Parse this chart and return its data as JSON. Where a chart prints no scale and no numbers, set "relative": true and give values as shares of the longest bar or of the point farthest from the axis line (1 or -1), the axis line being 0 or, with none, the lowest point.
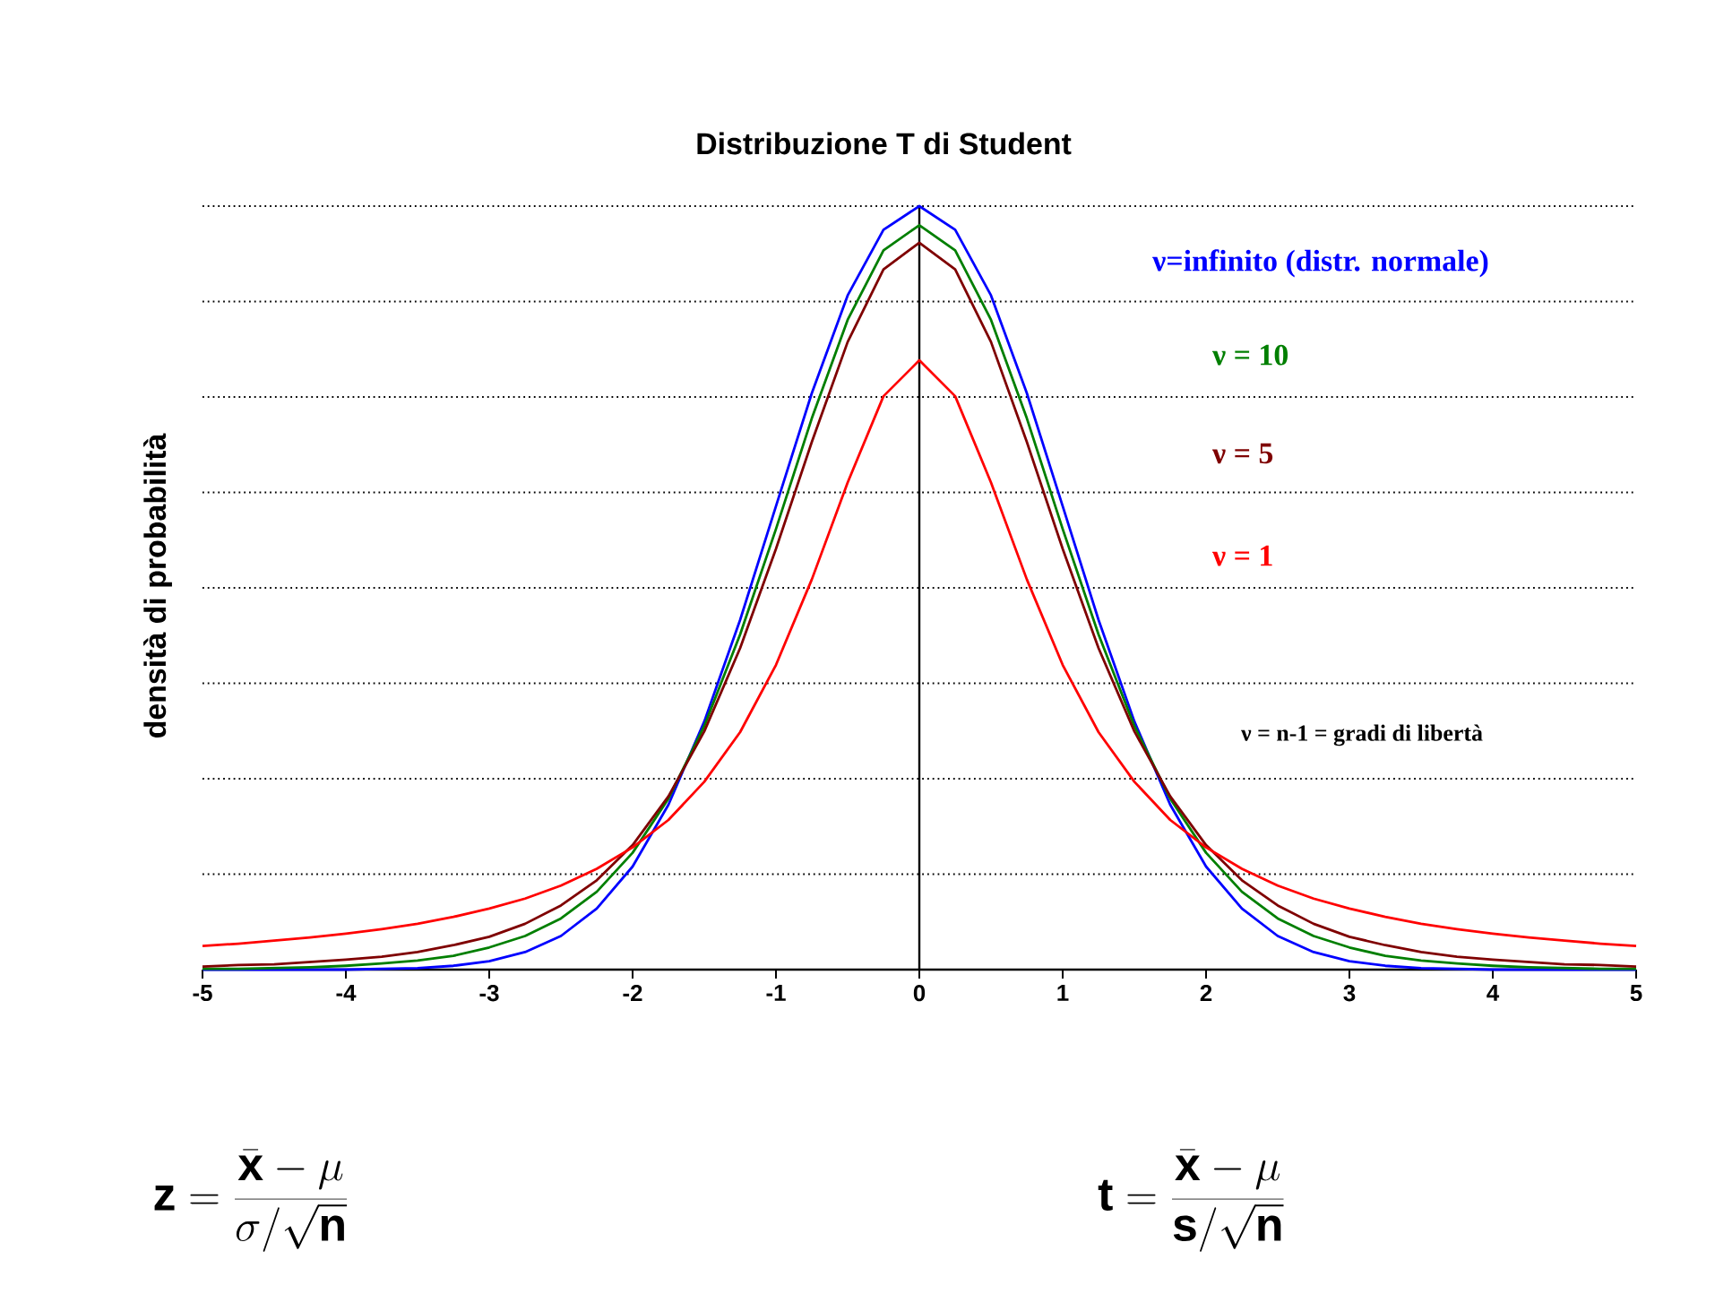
{
  "chart_data": {
    "type": "line",
    "title": "Distribuzione T di Student",
    "ylabel": "densità di probabilità",
    "relative": true,
    "x": [
      -5,
      -4.75,
      -4.5,
      -4.25,
      -4,
      -3.75,
      -3.5,
      -3.25,
      -3,
      -2.75,
      -2.5,
      -2.25,
      -2,
      -1.75,
      -1.5,
      -1.25,
      -1,
      -0.75,
      -0.5,
      -0.25,
      0,
      0.25,
      0.5,
      0.75,
      1,
      1.25,
      1.5,
      1.75,
      2,
      2.25,
      2.5,
      2.75,
      3,
      3.25,
      3.5,
      3.75,
      4,
      4.25,
      4.5,
      4.75,
      5
    ],
    "xlim": [
      -5,
      5
    ],
    "xticks": [
      -5,
      -4,
      -3,
      -2,
      -1,
      0,
      1,
      2,
      3,
      4,
      5
    ],
    "series": [
      {
        "name": "ν=infinito (distr. normale)",
        "color": "#0000ff",
        "values": [
          0.0,
          0.0,
          0.0,
          0.0,
          0.0,
          0.001,
          0.002,
          0.005,
          0.011,
          0.023,
          0.044,
          0.08,
          0.135,
          0.216,
          0.325,
          0.458,
          0.607,
          0.755,
          0.883,
          0.969,
          1.0,
          0.969,
          0.883,
          0.755,
          0.607,
          0.458,
          0.325,
          0.216,
          0.135,
          0.08,
          0.044,
          0.023,
          0.011,
          0.005,
          0.002,
          0.001,
          0.0,
          0.0,
          0.0,
          0.0,
          0.0
        ]
      },
      {
        "name": "ν = 10",
        "color": "#007f00",
        "values": [
          0.001,
          0.001,
          0.002,
          0.003,
          0.005,
          0.008,
          0.012,
          0.018,
          0.029,
          0.044,
          0.067,
          0.102,
          0.153,
          0.224,
          0.319,
          0.439,
          0.577,
          0.722,
          0.851,
          0.942,
          0.975,
          0.942,
          0.851,
          0.722,
          0.577,
          0.439,
          0.319,
          0.224,
          0.153,
          0.102,
          0.067,
          0.044,
          0.029,
          0.018,
          0.012,
          0.008,
          0.005,
          0.003,
          0.002,
          0.001,
          0.001
        ]
      },
      {
        "name": "ν = 5",
        "color": "#7f0000",
        "values": [
          0.004,
          0.006,
          0.007,
          0.01,
          0.013,
          0.017,
          0.023,
          0.032,
          0.043,
          0.06,
          0.084,
          0.117,
          0.163,
          0.227,
          0.312,
          0.421,
          0.551,
          0.691,
          0.822,
          0.917,
          0.952,
          0.917,
          0.822,
          0.691,
          0.551,
          0.421,
          0.312,
          0.227,
          0.163,
          0.117,
          0.084,
          0.06,
          0.043,
          0.032,
          0.023,
          0.017,
          0.013,
          0.01,
          0.007,
          0.006,
          0.004
        ]
      },
      {
        "name": "ν = 1",
        "color": "#ff0000",
        "values": [
          0.031,
          0.034,
          0.038,
          0.042,
          0.047,
          0.053,
          0.06,
          0.069,
          0.08,
          0.093,
          0.11,
          0.132,
          0.16,
          0.196,
          0.246,
          0.311,
          0.399,
          0.511,
          0.638,
          0.751,
          0.798,
          0.751,
          0.638,
          0.511,
          0.399,
          0.311,
          0.246,
          0.196,
          0.16,
          0.132,
          0.11,
          0.093,
          0.08,
          0.069,
          0.06,
          0.053,
          0.047,
          0.042,
          0.038,
          0.034,
          0.031
        ]
      }
    ],
    "ref_lines": [
      {
        "axis": "y",
        "value": 0.125,
        "color": "#000000",
        "line_style": "dotted"
      },
      {
        "axis": "y",
        "value": 0.25,
        "color": "#000000",
        "line_style": "dotted"
      },
      {
        "axis": "y",
        "value": 0.375,
        "color": "#000000",
        "line_style": "dotted"
      },
      {
        "axis": "y",
        "value": 0.5,
        "color": "#000000",
        "line_style": "dotted"
      },
      {
        "axis": "y",
        "value": 0.625,
        "color": "#000000",
        "line_style": "dotted"
      },
      {
        "axis": "y",
        "value": 0.75,
        "color": "#000000",
        "line_style": "dotted"
      },
      {
        "axis": "y",
        "value": 0.875,
        "color": "#000000",
        "line_style": "dotted"
      },
      {
        "axis": "y",
        "value": 1.0,
        "color": "#000000",
        "line_style": "dotted"
      }
    ],
    "legend": "right",
    "annotations": [
      "ν = n-1 = gradi di libertà",
      "\\mathbf{z} = \\frac{\\bar{\\mathbf{x}}-\\mu}{\\sigma/\\sqrt{\\mathbf{n}}}",
      "\\mathbf{t} = \\frac{\\bar{\\mathbf{x}}-\\mu}{\\mathbf{s}/\\sqrt{\\mathbf{n}}}"
    ]
  }
}
